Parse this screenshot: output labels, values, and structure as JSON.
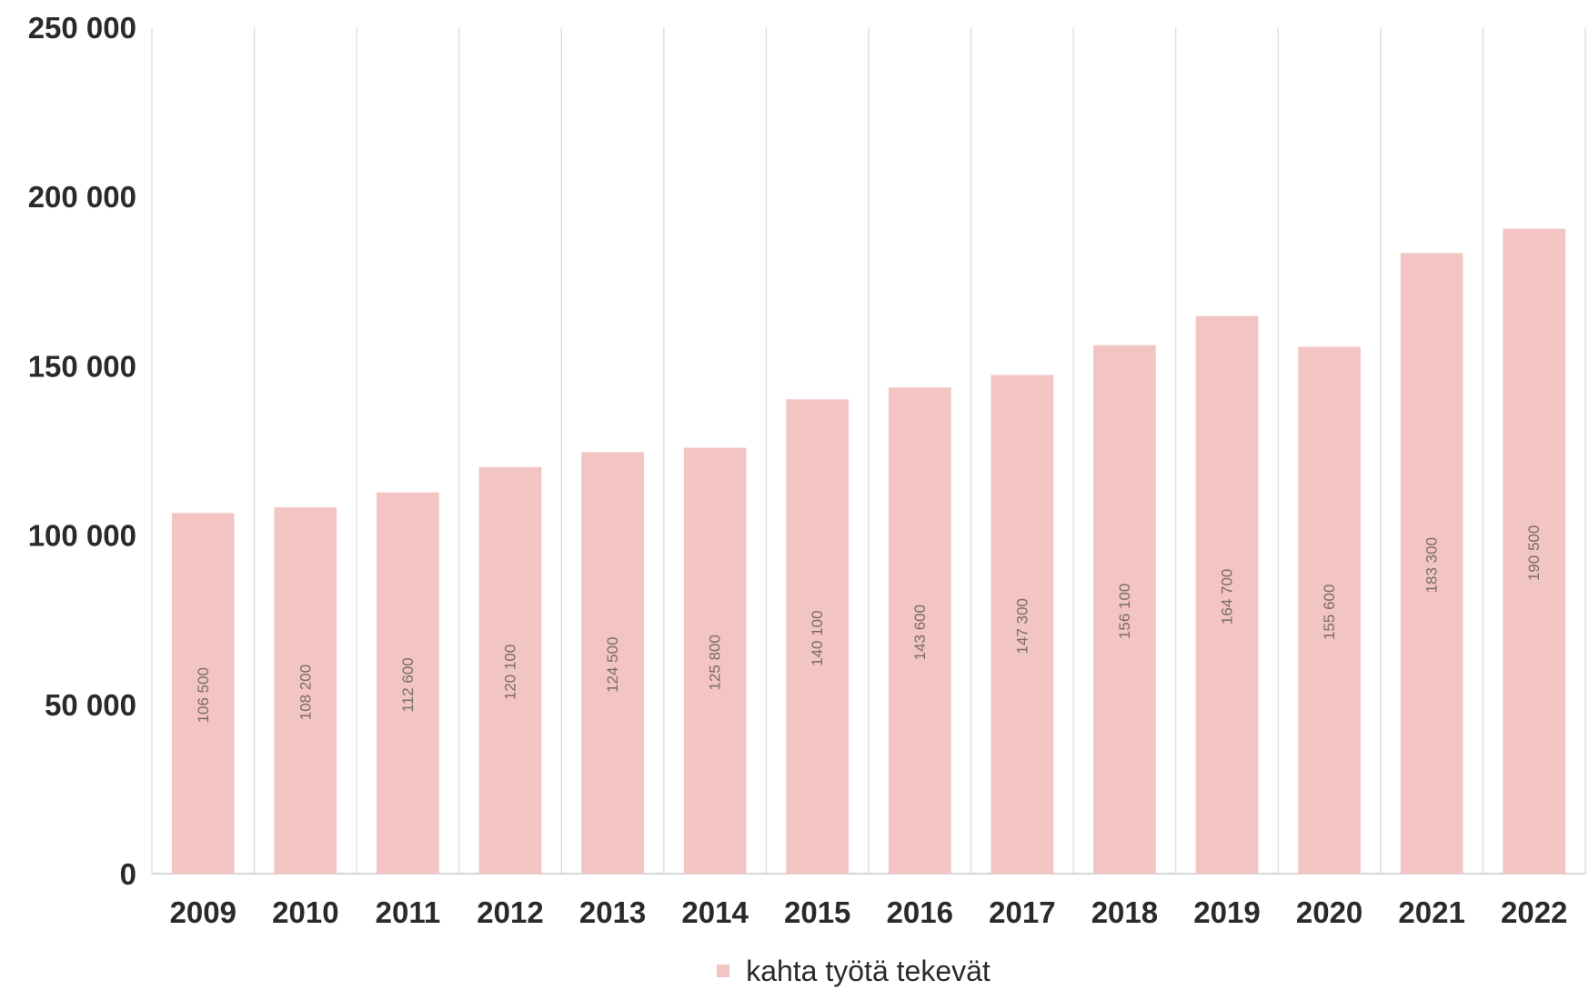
{
  "chart_data": {
    "type": "bar",
    "categories": [
      "2009",
      "2010",
      "2011",
      "2012",
      "2013",
      "2014",
      "2015",
      "2016",
      "2017",
      "2018",
      "2019",
      "2020",
      "2021",
      "2022"
    ],
    "series": [
      {
        "name": "kahta työtä tekevät",
        "values": [
          106500,
          108200,
          112600,
          120100,
          124500,
          125800,
          140100,
          143600,
          147300,
          156100,
          164700,
          155600,
          183300,
          190500
        ],
        "labels": [
          "106 500",
          "108 200",
          "112 600",
          "120 100",
          "124 500",
          "125 800",
          "140 100",
          "143 600",
          "147 300",
          "156 100",
          "164 700",
          "155 600",
          "183 300",
          "190 500"
        ]
      }
    ],
    "ylim": [
      0,
      250000
    ],
    "yticks": [
      0,
      50000,
      100000,
      150000,
      200000,
      250000
    ],
    "ytick_labels": [
      "0",
      "50 000",
      "100 000",
      "150 000",
      "200 000",
      "250 000"
    ],
    "grid": "vertical",
    "legend_position": "bottom",
    "bar_color": "#f2c4c2"
  }
}
